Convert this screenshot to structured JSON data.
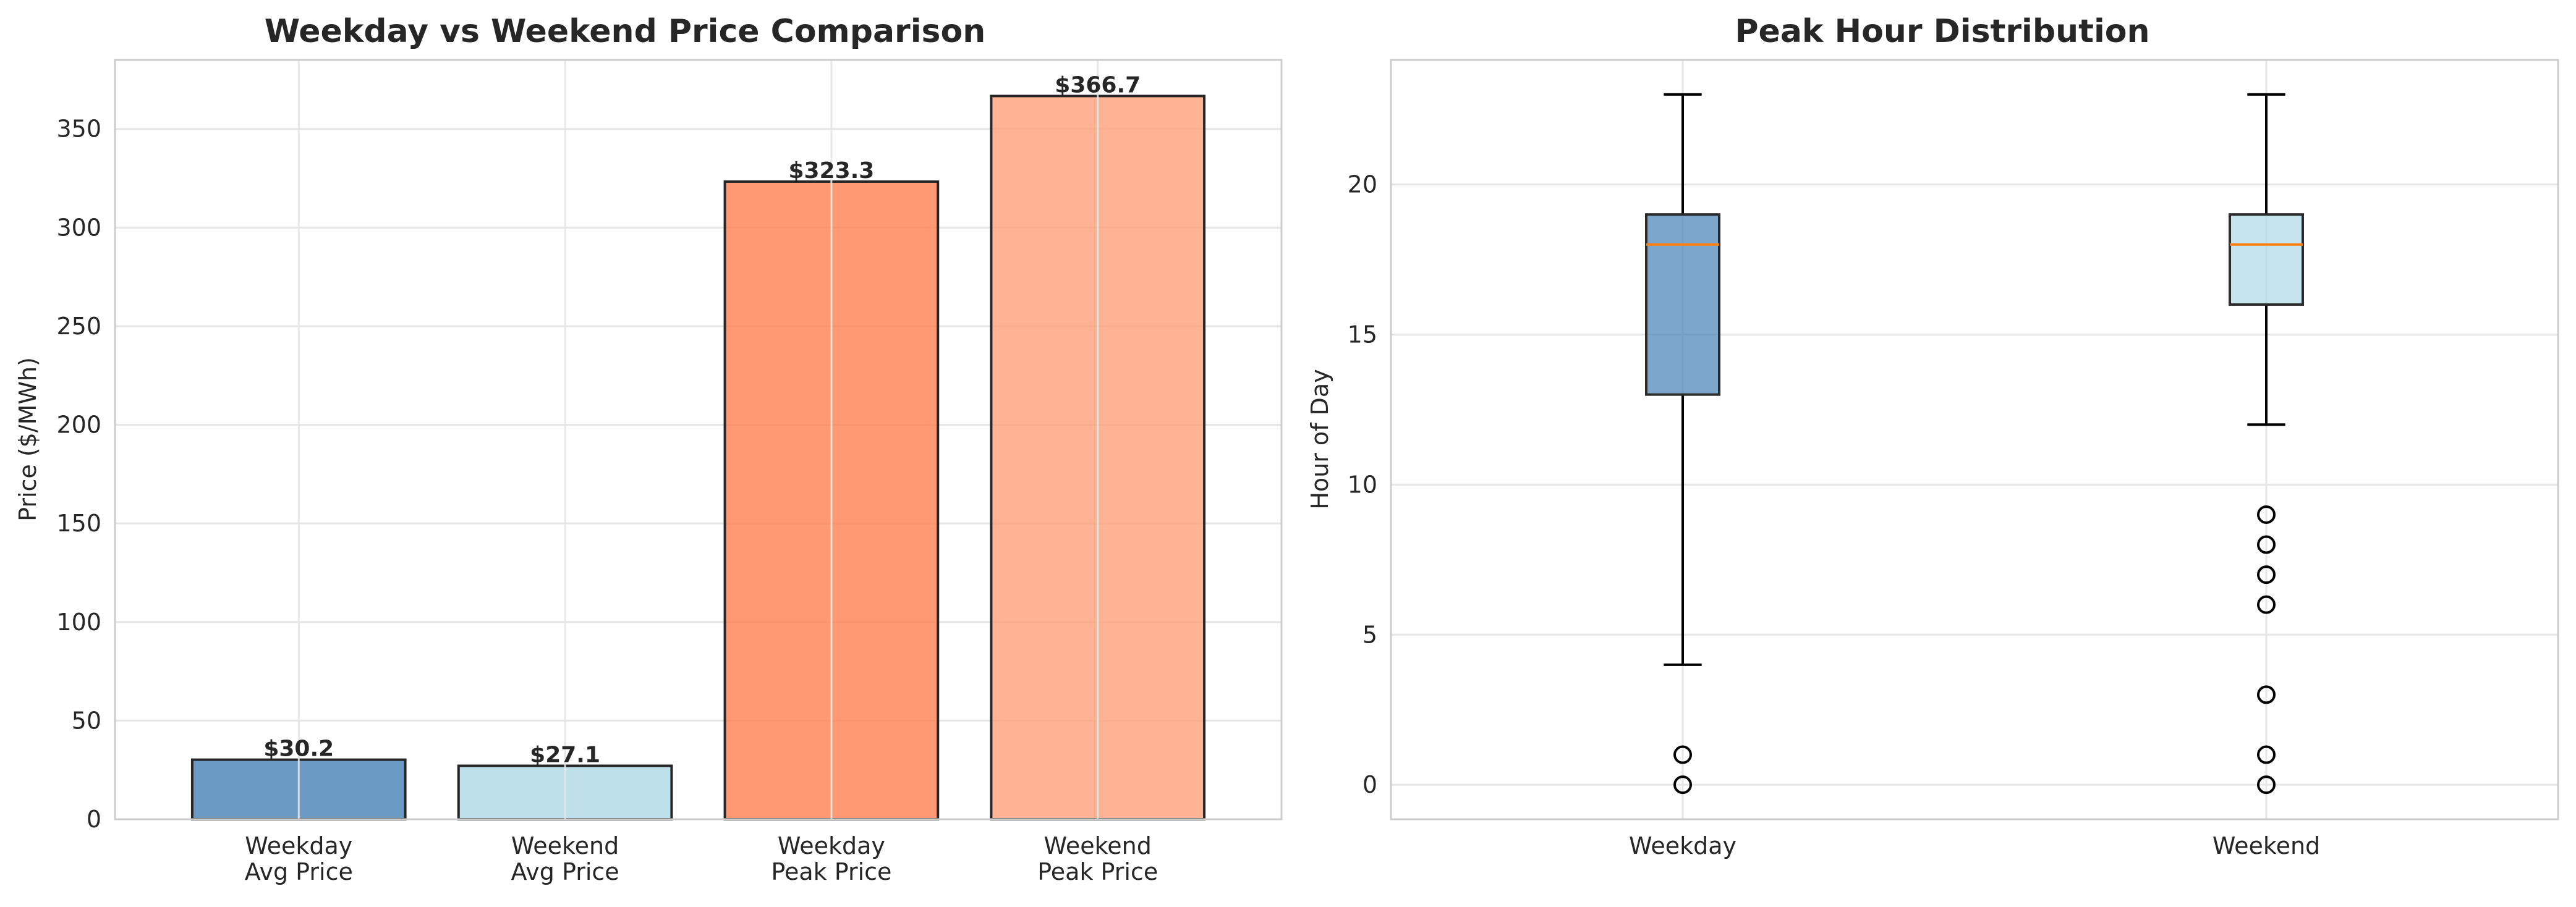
{
  "chart_data": [
    {
      "type": "bar",
      "title": "Weekday vs Weekend Price Comparison",
      "xlabel": "",
      "ylabel": "Price ($/MWh)",
      "ylim": [
        0,
        385
      ],
      "yticks": [
        0,
        50,
        100,
        150,
        200,
        250,
        300,
        350
      ],
      "grid": true,
      "categories": [
        [
          "Weekday",
          "Avg Price"
        ],
        [
          "Weekend",
          "Avg Price"
        ],
        [
          "Weekday",
          "Peak Price"
        ],
        [
          "Weekend",
          "Peak Price"
        ]
      ],
      "values": [
        30.2,
        27.1,
        323.3,
        366.7
      ],
      "data_labels": [
        "$30.2",
        "$27.1",
        "$323.3",
        "$366.7"
      ],
      "colors": [
        "#4682b4",
        "#add8e6",
        "#ff7f50",
        "#ffa07a"
      ],
      "edge_color": "#262626",
      "bar_opacity": 0.8
    },
    {
      "type": "box",
      "title": "Peak Hour Distribution",
      "xlabel": "",
      "ylabel": "Hour of Day",
      "ylim": [
        -1.15,
        24.15
      ],
      "yticks": [
        0,
        5,
        10,
        15,
        20
      ],
      "grid": true,
      "categories": [
        "Weekday",
        "Weekend"
      ],
      "series": [
        {
          "name": "Weekday",
          "whisker_low": 4,
          "q1": 13,
          "median": 18,
          "q3": 19,
          "whisker_high": 23,
          "outliers": [
            0,
            1
          ],
          "color": "#4682b4"
        },
        {
          "name": "Weekend",
          "whisker_low": 12,
          "q1": 16,
          "median": 18,
          "q3": 19,
          "whisker_high": 23,
          "outliers": [
            0,
            1,
            3,
            6,
            7,
            8,
            9
          ],
          "color": "#add8e6"
        }
      ],
      "median_color": "#ff7f0e",
      "box_opacity": 0.7
    }
  ]
}
